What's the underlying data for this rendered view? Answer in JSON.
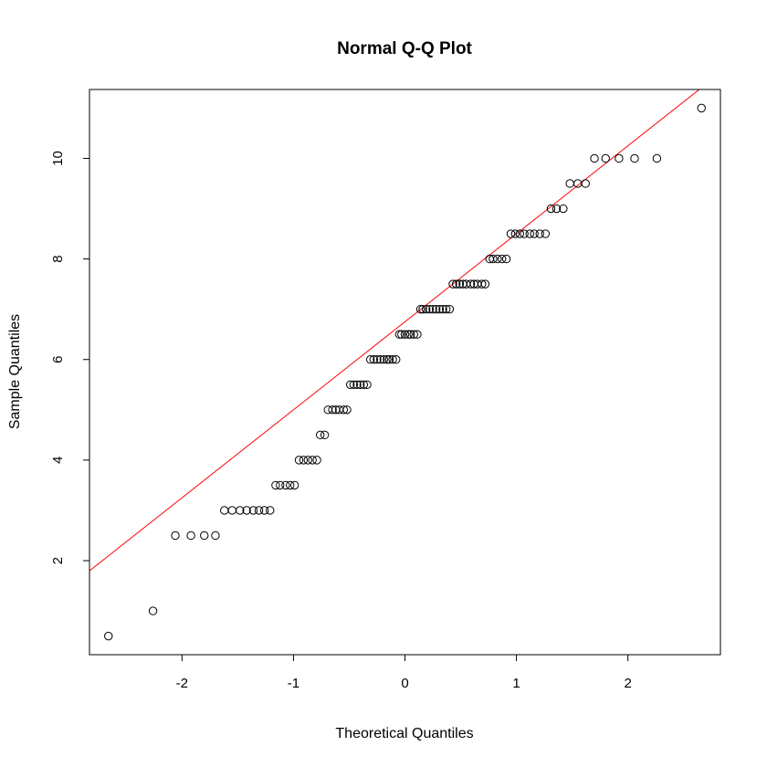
{
  "chart_data": {
    "type": "scatter",
    "title": "Normal Q-Q Plot",
    "xlabel": "Theoretical Quantiles",
    "ylabel": "Sample Quantiles",
    "xlim": [
      -2.83,
      2.83
    ],
    "ylim": [
      0.13,
      11.37
    ],
    "x_ticks": [
      -2,
      -1,
      0,
      1,
      2
    ],
    "x_tick_labels": [
      "-2",
      "-1",
      "0",
      "1",
      "2"
    ],
    "y_ticks": [
      2,
      4,
      6,
      8,
      10
    ],
    "y_tick_labels": [
      "2",
      "4",
      "6",
      "8",
      "10"
    ],
    "grid": false,
    "point_color": "#000000",
    "line_color": "#ff0000",
    "reference_line": {
      "intercept": 6.75,
      "slope": 1.75
    },
    "series": [
      {
        "points": [
          [
            -2.66,
            0.5
          ],
          [
            -2.26,
            1.0
          ],
          [
            -2.06,
            2.5
          ],
          [
            -1.92,
            2.5
          ],
          [
            -1.8,
            2.5
          ],
          [
            -1.7,
            2.5
          ],
          [
            -1.62,
            3.0
          ],
          [
            -1.55,
            3.0
          ],
          [
            -1.48,
            3.0
          ],
          [
            -1.42,
            3.0
          ],
          [
            -1.36,
            3.0
          ],
          [
            -1.31,
            3.0
          ],
          [
            -1.26,
            3.0
          ],
          [
            -1.21,
            3.0
          ],
          [
            -1.16,
            3.5
          ],
          [
            -1.12,
            3.5
          ],
          [
            -1.07,
            3.5
          ],
          [
            -1.03,
            3.5
          ],
          [
            -0.99,
            3.5
          ],
          [
            -0.95,
            4.0
          ],
          [
            -0.91,
            4.0
          ],
          [
            -0.87,
            4.0
          ],
          [
            -0.83,
            4.0
          ],
          [
            -0.79,
            4.0
          ],
          [
            -0.76,
            4.5
          ],
          [
            -0.72,
            4.5
          ],
          [
            -0.69,
            5.0
          ],
          [
            -0.65,
            5.0
          ],
          [
            -0.62,
            5.0
          ],
          [
            -0.59,
            5.0
          ],
          [
            -0.55,
            5.0
          ],
          [
            -0.52,
            5.0
          ],
          [
            -0.49,
            5.5
          ],
          [
            -0.46,
            5.5
          ],
          [
            -0.43,
            5.5
          ],
          [
            -0.4,
            5.5
          ],
          [
            -0.37,
            5.5
          ],
          [
            -0.34,
            5.5
          ],
          [
            -0.31,
            6.0
          ],
          [
            -0.28,
            6.0
          ],
          [
            -0.25,
            6.0
          ],
          [
            -0.22,
            6.0
          ],
          [
            -0.19,
            6.0
          ],
          [
            -0.16,
            6.0
          ],
          [
            -0.14,
            6.0
          ],
          [
            -0.11,
            6.0
          ],
          [
            -0.08,
            6.0
          ],
          [
            -0.05,
            6.5
          ],
          [
            -0.03,
            6.5
          ],
          [
            0.0,
            6.5
          ],
          [
            0.03,
            6.5
          ],
          [
            0.05,
            6.5
          ],
          [
            0.08,
            6.5
          ],
          [
            0.11,
            6.5
          ],
          [
            0.14,
            7.0
          ],
          [
            0.16,
            7.0
          ],
          [
            0.19,
            7.0
          ],
          [
            0.22,
            7.0
          ],
          [
            0.25,
            7.0
          ],
          [
            0.28,
            7.0
          ],
          [
            0.31,
            7.0
          ],
          [
            0.34,
            7.0
          ],
          [
            0.37,
            7.0
          ],
          [
            0.4,
            7.0
          ],
          [
            0.43,
            7.5
          ],
          [
            0.46,
            7.5
          ],
          [
            0.49,
            7.5
          ],
          [
            0.52,
            7.5
          ],
          [
            0.55,
            7.5
          ],
          [
            0.59,
            7.5
          ],
          [
            0.62,
            7.5
          ],
          [
            0.65,
            7.5
          ],
          [
            0.69,
            7.5
          ],
          [
            0.72,
            7.5
          ],
          [
            0.76,
            8.0
          ],
          [
            0.79,
            8.0
          ],
          [
            0.83,
            8.0
          ],
          [
            0.87,
            8.0
          ],
          [
            0.91,
            8.0
          ],
          [
            0.95,
            8.5
          ],
          [
            0.99,
            8.5
          ],
          [
            1.03,
            8.5
          ],
          [
            1.07,
            8.5
          ],
          [
            1.12,
            8.5
          ],
          [
            1.16,
            8.5
          ],
          [
            1.21,
            8.5
          ],
          [
            1.26,
            8.5
          ],
          [
            1.31,
            9.0
          ],
          [
            1.36,
            9.0
          ],
          [
            1.42,
            9.0
          ],
          [
            1.48,
            9.5
          ],
          [
            1.55,
            9.5
          ],
          [
            1.62,
            9.5
          ],
          [
            1.7,
            10.0
          ],
          [
            1.8,
            10.0
          ],
          [
            1.92,
            10.0
          ],
          [
            2.06,
            10.0
          ],
          [
            2.26,
            10.0
          ],
          [
            2.66,
            11.0
          ]
        ]
      }
    ]
  }
}
